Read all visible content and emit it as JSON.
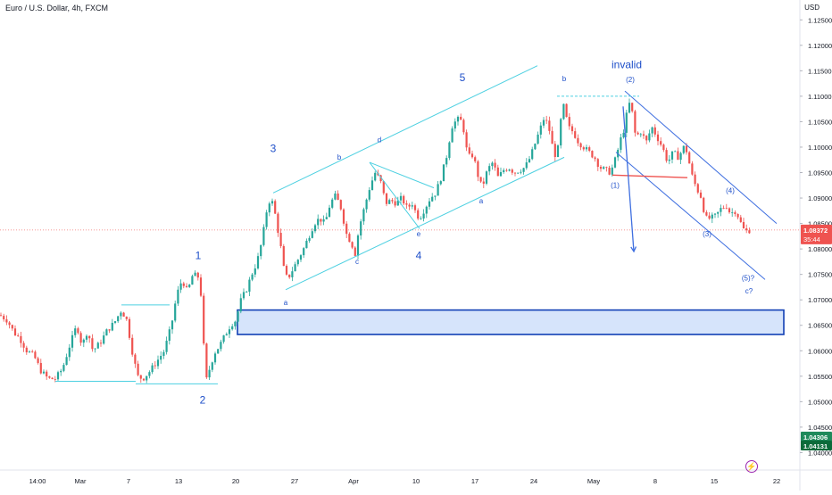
{
  "header": {
    "title": "Euro / U.S. Dollar, 4h, FXCM",
    "currency": "USD"
  },
  "icons": {
    "alert": "lightning-icon"
  },
  "colors": {
    "up": "#26a69a",
    "down": "#ef5350",
    "channel": "#4dd0e1",
    "wave": "#1e4fc9",
    "blue_line": "#3f6fe0",
    "zone_fill": "#d6e4fb",
    "zone_border": "#1240b5",
    "current_price": "#ef5350",
    "green_price": "#1f8a5b",
    "dark_green_price": "#0b6b3a"
  },
  "chart_data": {
    "type": "candlestick",
    "x_ticks": [
      "14:00",
      "Mar",
      "7",
      "13",
      "20",
      "27",
      "Apr",
      "10",
      "17",
      "24",
      "May",
      "8",
      "15",
      "22"
    ],
    "y_ticks": [
      "1.12500",
      "1.12000",
      "1.11500",
      "1.11000",
      "1.10500",
      "1.10000",
      "1.09500",
      "1.09000",
      "1.08500",
      "1.08000",
      "1.07500",
      "1.07000",
      "1.06500",
      "1.06000",
      "1.05500",
      "1.05000",
      "1.04500",
      "1.04000"
    ],
    "ylim": [
      1.0385,
      1.1275
    ],
    "price_labels": [
      {
        "value": 1.08372,
        "text": "1.08372",
        "sub": "35:44",
        "color": "#ef5350"
      },
      {
        "value": 1.04306,
        "text": "1.04306",
        "color": "#1f8a5b"
      },
      {
        "value": 1.04131,
        "text": "1.04131",
        "color": "#0b6b3a"
      }
    ],
    "price_path": [
      [
        0,
        1.067
      ],
      [
        8,
        1.066
      ],
      [
        16,
        1.0635
      ],
      [
        22,
        1.0625
      ],
      [
        30,
        1.06
      ],
      [
        38,
        1.059
      ],
      [
        46,
        1.056
      ],
      [
        54,
        1.0545
      ],
      [
        62,
        1.0545
      ],
      [
        70,
        1.0565
      ],
      [
        78,
        1.061
      ],
      [
        86,
        1.065
      ],
      [
        92,
        1.061
      ],
      [
        98,
        1.064
      ],
      [
        104,
        1.06
      ],
      [
        112,
        1.0615
      ],
      [
        120,
        1.064
      ],
      [
        128,
        1.0655
      ],
      [
        136,
        1.068
      ],
      [
        142,
        1.066
      ],
      [
        148,
        1.06
      ],
      [
        154,
        1.055
      ],
      [
        160,
        1.0545
      ],
      [
        168,
        1.056
      ],
      [
        176,
        1.058
      ],
      [
        184,
        1.06
      ],
      [
        192,
        1.065
      ],
      [
        198,
        1.071
      ],
      [
        204,
        1.074
      ],
      [
        210,
        1.0715
      ],
      [
        216,
        1.075
      ],
      [
        222,
        1.0745
      ],
      [
        226,
        1.07
      ],
      [
        230,
        1.0535
      ],
      [
        234,
        1.056
      ],
      [
        240,
        1.0595
      ],
      [
        246,
        1.061
      ],
      [
        252,
        1.063
      ],
      [
        258,
        1.065
      ],
      [
        264,
        1.066
      ],
      [
        270,
        1.07
      ],
      [
        276,
        1.072
      ],
      [
        282,
        1.075
      ],
      [
        288,
        1.0775
      ],
      [
        294,
        1.082
      ],
      [
        298,
        1.087
      ],
      [
        302,
        1.0895
      ],
      [
        306,
        1.089
      ],
      [
        310,
        1.085
      ],
      [
        314,
        1.081
      ],
      [
        318,
        1.076
      ],
      [
        322,
        1.074
      ],
      [
        328,
        1.076
      ],
      [
        334,
        1.078
      ],
      [
        340,
        1.08
      ],
      [
        346,
        1.0825
      ],
      [
        352,
        1.085
      ],
      [
        358,
        1.086
      ],
      [
        364,
        1.085
      ],
      [
        370,
        1.089
      ],
      [
        376,
        1.0905
      ],
      [
        382,
        1.088
      ],
      [
        388,
        1.083
      ],
      [
        394,
        1.081
      ],
      [
        398,
        1.079
      ],
      [
        402,
        1.084
      ],
      [
        408,
        1.088
      ],
      [
        414,
        1.092
      ],
      [
        420,
        1.095
      ],
      [
        426,
        1.0935
      ],
      [
        432,
        1.089
      ],
      [
        438,
        1.0895
      ],
      [
        444,
        1.089
      ],
      [
        450,
        1.09
      ],
      [
        456,
        1.088
      ],
      [
        462,
        1.089
      ],
      [
        466,
        1.087
      ],
      [
        470,
        1.086
      ],
      [
        476,
        1.088
      ],
      [
        482,
        1.09
      ],
      [
        488,
        1.091
      ],
      [
        494,
        1.094
      ],
      [
        500,
        1.098
      ],
      [
        506,
        1.104
      ],
      [
        512,
        1.1055
      ],
      [
        518,
        1.105
      ],
      [
        524,
        1.098
      ],
      [
        530,
        1.0985
      ],
      [
        536,
        1.094
      ],
      [
        540,
        1.092
      ],
      [
        546,
        1.0955
      ],
      [
        552,
        1.097
      ],
      [
        558,
        1.094
      ],
      [
        564,
        1.0955
      ],
      [
        570,
        1.096
      ],
      [
        576,
        1.095
      ],
      [
        582,
        1.0955
      ],
      [
        588,
        1.096
      ],
      [
        594,
        1.098
      ],
      [
        600,
        1.101
      ],
      [
        606,
        1.104
      ],
      [
        610,
        1.106
      ],
      [
        616,
        1.103
      ],
      [
        620,
        1.099
      ],
      [
        624,
        1.098
      ],
      [
        628,
        1.105
      ],
      [
        632,
        1.1085
      ],
      [
        636,
        1.104
      ],
      [
        642,
        1.103
      ],
      [
        648,
        1.101
      ],
      [
        654,
        1.1
      ],
      [
        660,
        1.099
      ],
      [
        666,
        1.098
      ],
      [
        672,
        1.096
      ],
      [
        678,
        1.0955
      ],
      [
        684,
        1.095
      ],
      [
        690,
        1.098
      ],
      [
        696,
        1.102
      ],
      [
        700,
        1.104
      ],
      [
        704,
        1.109
      ],
      [
        708,
        1.107
      ],
      [
        712,
        1.102
      ],
      [
        718,
        1.103
      ],
      [
        724,
        1.101
      ],
      [
        730,
        1.104
      ],
      [
        736,
        1.102
      ],
      [
        742,
        1.1
      ],
      [
        748,
        1.097
      ],
      [
        754,
        1.099
      ],
      [
        760,
        1.098
      ],
      [
        766,
        1.1
      ],
      [
        770,
        1.099
      ],
      [
        774,
        1.095
      ],
      [
        780,
        1.092
      ],
      [
        786,
        1.09
      ],
      [
        790,
        1.086
      ],
      [
        796,
        1.086
      ],
      [
        802,
        1.0865
      ],
      [
        808,
        1.088
      ],
      [
        814,
        1.0885
      ],
      [
        818,
        1.087
      ],
      [
        824,
        1.0875
      ],
      [
        828,
        1.086
      ],
      [
        832,
        1.084
      ],
      [
        836,
        1.0835
      ],
      [
        840,
        1.0837
      ]
    ],
    "channels": [
      {
        "from": [
          306,
          1.091
        ],
        "to": [
          602,
          1.116
        ]
      },
      {
        "from": [
          320,
          1.072
        ],
        "to": [
          632,
          1.098
        ]
      },
      {
        "from": [
          700,
          1.111
        ],
        "to": [
          870,
          1.085
        ]
      },
      {
        "from": [
          690,
          1.099
        ],
        "to": [
          857,
          1.074
        ]
      }
    ],
    "triangle": [
      {
        "from": [
          414,
          1.097
        ],
        "to": [
          486,
          1.092
        ]
      },
      {
        "from": [
          414,
          1.097
        ],
        "to": [
          470,
          1.084
        ]
      }
    ],
    "flat_lines": [
      {
        "from": [
          62,
          1.054
        ],
        "to": [
          152,
          1.054
        ]
      },
      {
        "from": [
          152,
          1.0535
        ],
        "to": [
          244,
          1.0535
        ]
      },
      {
        "from": [
          136,
          1.069
        ],
        "to": [
          190,
          1.069
        ]
      }
    ],
    "red_line": {
      "from": [
        686,
        1.0945
      ],
      "to": [
        770,
        1.094
      ]
    },
    "dashed_top": {
      "from": [
        624,
        1.11
      ],
      "to": [
        716,
        1.11
      ]
    },
    "current_price_line": 1.08372,
    "arrows": [
      {
        "from": [
          698,
          1.108
        ],
        "to": [
          710,
          1.0795
        ]
      }
    ],
    "zone": {
      "x0": 266,
      "x1": 878,
      "y_top": 1.068,
      "y_bottom": 1.0632
    },
    "wave_labels": [
      {
        "text": "1",
        "x": 222,
        "y": 1.078,
        "size": 12,
        "color": "#1e4fc9"
      },
      {
        "text": "2",
        "x": 227,
        "y": 1.0496,
        "size": 12,
        "color": "#1e4fc9"
      },
      {
        "text": "3",
        "x": 306,
        "y": 1.099,
        "size": 12,
        "color": "#1e4fc9"
      },
      {
        "text": "4",
        "x": 469,
        "y": 1.078,
        "size": 12,
        "color": "#1e4fc9"
      },
      {
        "text": "5",
        "x": 518,
        "y": 1.113,
        "size": 12,
        "color": "#1e4fc9"
      },
      {
        "text": "invalid",
        "x": 702,
        "y": 1.1155,
        "size": 12,
        "color": "#1e4fc9"
      },
      {
        "text": "a",
        "x": 320,
        "y": 1.069,
        "size": 8,
        "color": "#1e4fc9"
      },
      {
        "text": "b",
        "x": 380,
        "y": 1.0975,
        "size": 8,
        "color": "#1e4fc9"
      },
      {
        "text": "c",
        "x": 400,
        "y": 1.077,
        "size": 8,
        "color": "#1e4fc9"
      },
      {
        "text": "d",
        "x": 425,
        "y": 1.101,
        "size": 8,
        "color": "#1e4fc9"
      },
      {
        "text": "e",
        "x": 469,
        "y": 1.0825,
        "size": 8,
        "color": "#1e4fc9"
      },
      {
        "text": "a",
        "x": 539,
        "y": 1.089,
        "size": 8,
        "color": "#1e4fc9"
      },
      {
        "text": "b",
        "x": 632,
        "y": 1.113,
        "size": 8,
        "color": "#1e4fc9"
      },
      {
        "text": "(2)",
        "x": 706,
        "y": 1.1128,
        "size": 8,
        "color": "#1e4fc9"
      },
      {
        "text": "(1)",
        "x": 689,
        "y": 1.092,
        "size": 8,
        "color": "#1e4fc9"
      },
      {
        "text": "(3)",
        "x": 792,
        "y": 1.0825,
        "size": 8,
        "color": "#1e4fc9"
      },
      {
        "text": "(4)",
        "x": 818,
        "y": 1.091,
        "size": 8,
        "color": "#1e4fc9"
      },
      {
        "text": "(5)?",
        "x": 838,
        "y": 1.0738,
        "size": 8,
        "color": "#1e4fc9"
      },
      {
        "text": "c?",
        "x": 839,
        "y": 1.0713,
        "size": 8,
        "color": "#1e4fc9"
      }
    ]
  }
}
